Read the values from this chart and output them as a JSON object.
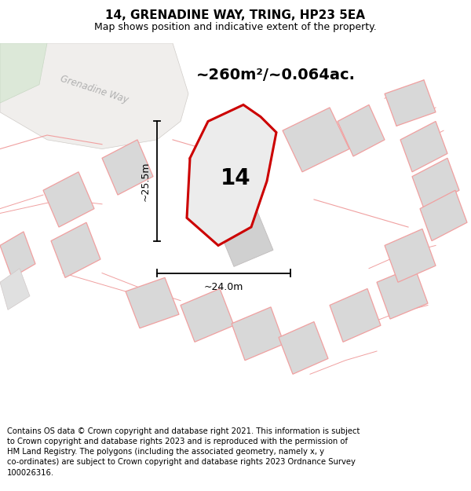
{
  "title": "14, GRENADINE WAY, TRING, HP23 5EA",
  "subtitle": "Map shows position and indicative extent of the property.",
  "area_label": "~260m²/~0.064ac.",
  "dim_h": "~25.5m",
  "dim_w": "~24.0m",
  "plot_number": "14",
  "road_label": "Grenadine Way",
  "footer": "Contains OS data © Crown copyright and database right 2021. This information is subject to Crown copyright and database rights 2023 and is reproduced with the permission of HM Land Registry. The polygons (including the associated geometry, namely x, y co-ordinates) are subject to Crown copyright and database rights 2023 Ordnance Survey 100026316.",
  "bg_color": "#f8f8f8",
  "map_bg": "#f2efed",
  "plot_fill": "#ebebeb",
  "plot_edge": "#cc0000",
  "neighbor_fill": "#d8d8d8",
  "neighbor_edge": "#f0a0a0",
  "road_fill": "#f5f3f0",
  "road_edge": "#e8c8c8",
  "title_fontsize": 11,
  "subtitle_fontsize": 9,
  "area_fontsize": 14,
  "plot_num_fontsize": 18,
  "dim_fontsize": 9,
  "footer_fontsize": 7.2
}
